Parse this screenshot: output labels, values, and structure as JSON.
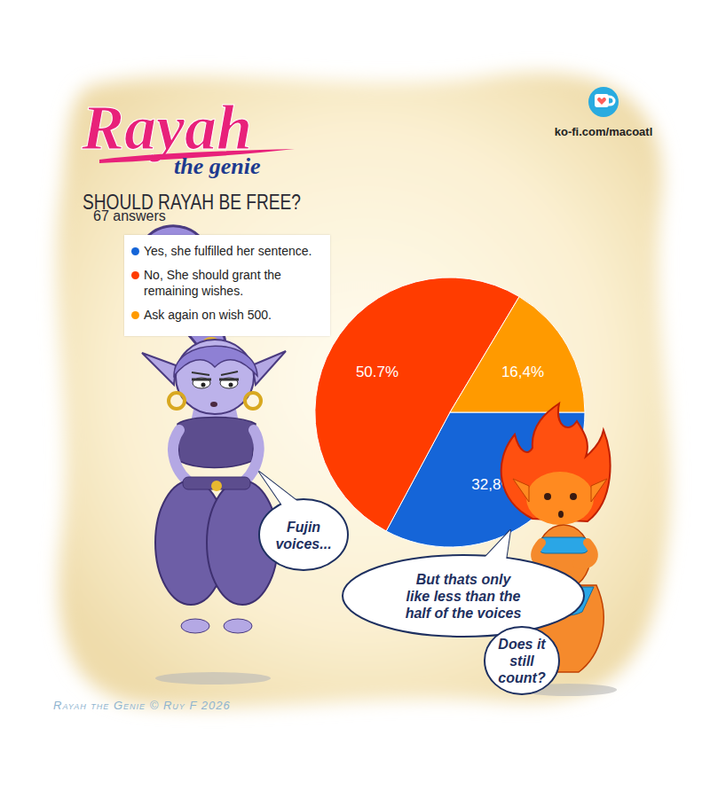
{
  "chart_data": {
    "type": "pie",
    "title": "SHOULD RAYAH BE FREE?",
    "subtitle": "67 answers",
    "categories": [
      "Yes, she fulfilled her sentence.",
      "No, She should grant the remaining wishes.",
      "Ask again on wish 500."
    ],
    "values": [
      32.8,
      50.7,
      16.4
    ],
    "value_labels": [
      "32,8%",
      "50.7%",
      "16,4%"
    ],
    "colors": [
      "#1565d8",
      "#ff3c00",
      "#ff9a00"
    ],
    "legend": "left",
    "data_labels": true
  },
  "logo": {
    "title": "Rayah",
    "subtitle": "the genie"
  },
  "link": "ko-fi.com/macoatl",
  "speech": [
    [
      "Fujin",
      "voices..."
    ],
    [
      "But thats only",
      "like less than the",
      "half of the voices"
    ],
    [
      "Does it",
      "still",
      "count?"
    ]
  ],
  "copyright": "Rayah the Genie © Ruy F 2026"
}
